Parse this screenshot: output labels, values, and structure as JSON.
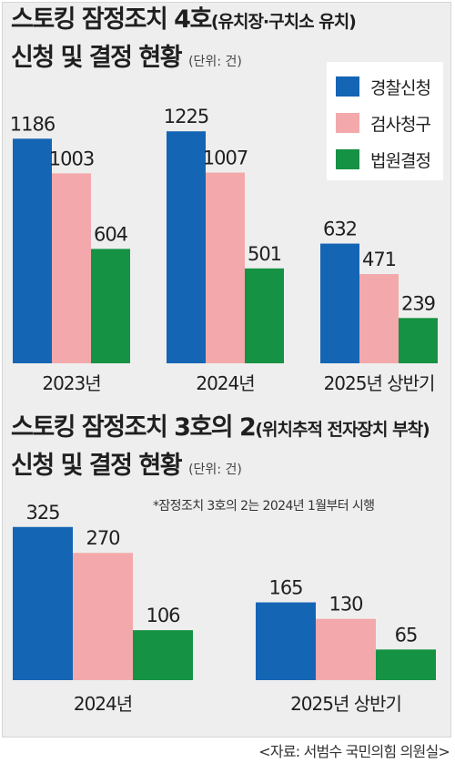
{
  "colors": {
    "police": "#1565b5",
    "prosecution": "#f3a9ab",
    "court": "#159243"
  },
  "chart1": {
    "title_main": "스토킹 잠정조치 4호",
    "title_sub": "(유치장·구치소 유치)",
    "title_line2": "신청 및 결정 현황",
    "unit": "(단위: 건)"
  },
  "chart2": {
    "title_main": "스토킹 잠정조치 3호의 2",
    "title_sub": "(위치추적 전자장치 부착)",
    "title_line2": "신청 및 결정 현황",
    "unit": "(단위: 건)",
    "note": "*잠정조치 3호의 2는 2024년 1월부터 시행"
  },
  "legend": [
    {
      "label": "경찰신청",
      "color_key": "police"
    },
    {
      "label": "검사청구",
      "color_key": "prosecution"
    },
    {
      "label": "법원결정",
      "color_key": "court"
    }
  ],
  "source": "<자료: 서범수 국민의힘 의원실>",
  "chart_data": [
    {
      "type": "bar",
      "title": "스토킹 잠정조치 4호(유치장·구치소 유치) 신청 및 결정 현황",
      "unit": "건",
      "categories": [
        "2023년",
        "2024년",
        "2025년 상반기"
      ],
      "series": [
        {
          "name": "경찰신청",
          "values": [
            1186,
            1225,
            632
          ]
        },
        {
          "name": "검사청구",
          "values": [
            1003,
            1007,
            471
          ]
        },
        {
          "name": "법원결정",
          "values": [
            604,
            501,
            239
          ]
        }
      ],
      "ylim": [
        0,
        1250
      ],
      "grid": false,
      "legend": "top-right"
    },
    {
      "type": "bar",
      "title": "스토킹 잠정조치 3호의 2(위치추적 전자장치 부착) 신청 및 결정 현황",
      "unit": "건",
      "categories": [
        "2024년",
        "2025년 상반기"
      ],
      "series": [
        {
          "name": "경찰신청",
          "values": [
            325,
            165
          ]
        },
        {
          "name": "검사청구",
          "values": [
            270,
            130
          ]
        },
        {
          "name": "법원결정",
          "values": [
            106,
            65
          ]
        }
      ],
      "ylim": [
        0,
        340
      ],
      "grid": false,
      "legend": "none"
    }
  ]
}
